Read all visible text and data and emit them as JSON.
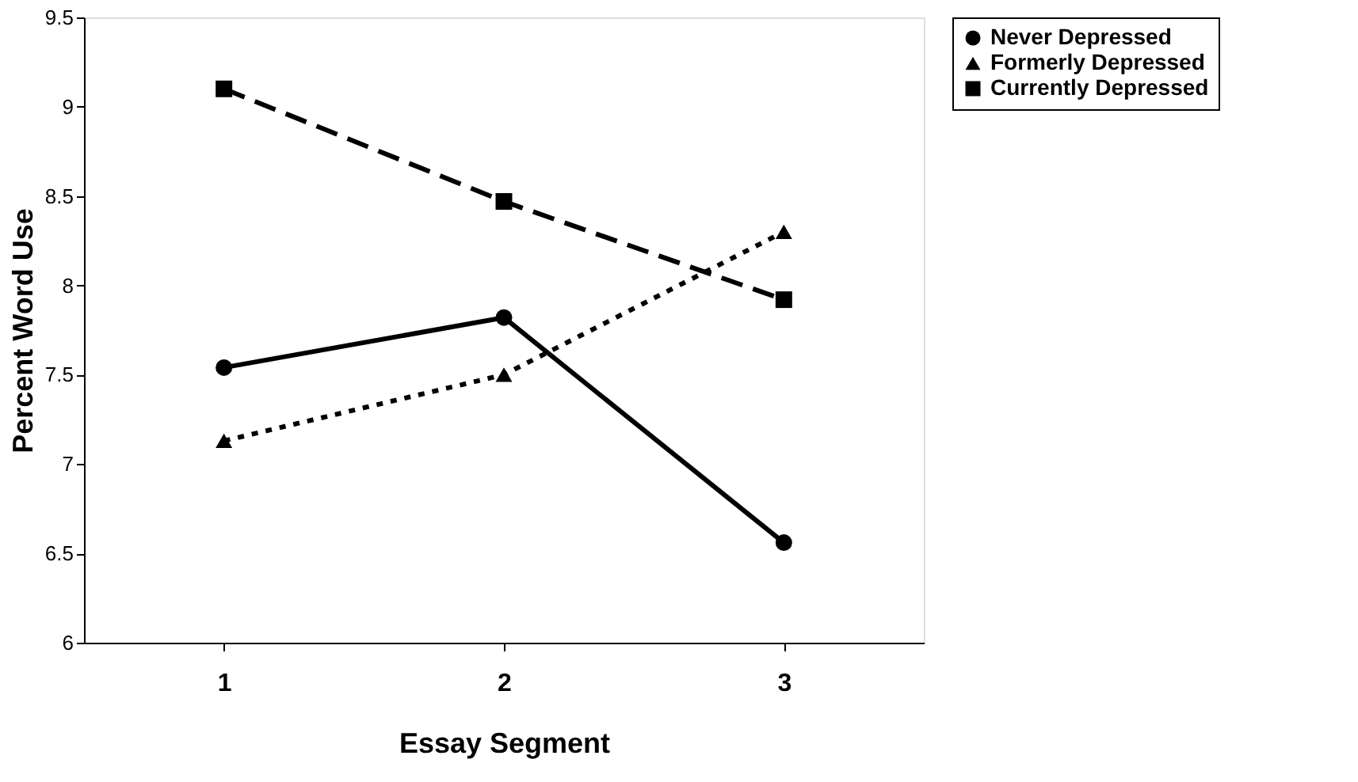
{
  "chart_data": {
    "type": "line",
    "xlabel": "Essay Segment",
    "ylabel": "Percent Word Use",
    "categories": [
      "1",
      "2",
      "3"
    ],
    "ylim": [
      6,
      9.5
    ],
    "yticks": [
      6,
      6.5,
      7,
      7.5,
      8,
      8.5,
      9,
      9.5
    ],
    "grid": false,
    "legend": "right",
    "series": [
      {
        "name": "Never Depressed",
        "color": "#000000",
        "values": [
          7.54,
          7.82,
          6.56
        ],
        "marker": "circle",
        "line_style": "solid"
      },
      {
        "name": "Formerly Depressed",
        "color": "#000000",
        "values": [
          7.13,
          7.5,
          8.3
        ],
        "marker": "triangle",
        "line_style": "dotted"
      },
      {
        "name": "Currently Depressed",
        "color": "#000000",
        "values": [
          9.1,
          8.47,
          7.92
        ],
        "marker": "square",
        "line_style": "dashed"
      }
    ]
  }
}
